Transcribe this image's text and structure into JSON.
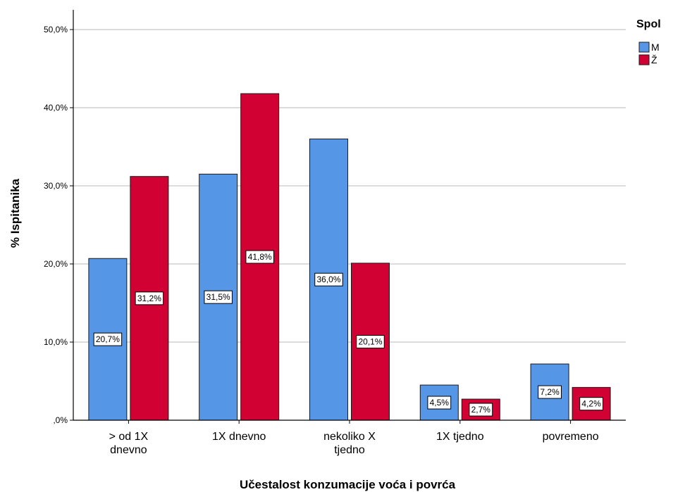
{
  "chart_data": {
    "type": "bar",
    "title": "",
    "xlabel": "Učestalost konzumacije voća i povrća",
    "ylabel": "% Ispitanika",
    "ylim": [
      0,
      50
    ],
    "yticks": [
      0,
      10,
      20,
      30,
      40,
      50
    ],
    "ytick_labels": [
      ",0%",
      "10,0%",
      "20,0%",
      "30,0%",
      "40,0%",
      "50,0%"
    ],
    "grid": true,
    "categories": [
      [
        "> od 1X",
        "dnevno"
      ],
      [
        "1X dnevno"
      ],
      [
        "nekoliko X",
        "tjedno"
      ],
      [
        "1X tjedno"
      ],
      [
        "povremeno"
      ]
    ],
    "legend": {
      "title": "Spol",
      "position": "top-right"
    },
    "series": [
      {
        "name": "M",
        "color": "#5596e6",
        "values": [
          20.7,
          31.5,
          36.0,
          4.5,
          7.2
        ],
        "labels": [
          "20,7%",
          "31,5%",
          "36,0%",
          "4,5%",
          "7,2%"
        ]
      },
      {
        "name": "Ž",
        "color": "#d10233",
        "values": [
          31.2,
          41.8,
          20.1,
          2.7,
          4.2
        ],
        "labels": [
          "31,2%",
          "41,8%",
          "20,1%",
          "2,7%",
          "4,2%"
        ]
      }
    ]
  }
}
